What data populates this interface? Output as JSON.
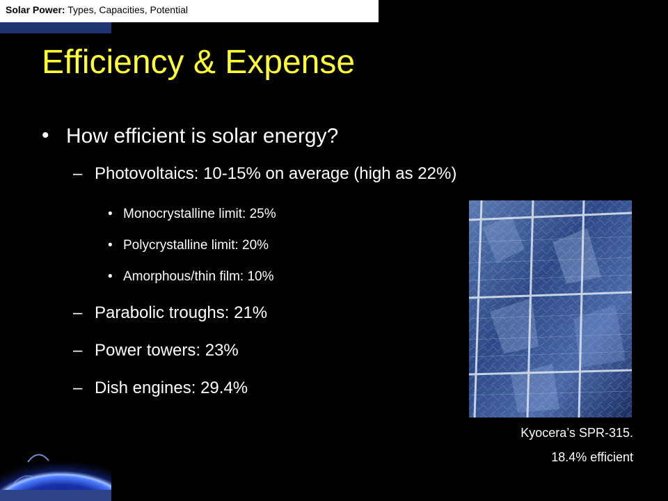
{
  "header": {
    "title_bold": "Solar Power:",
    "title_rest": " Types, Capacities, Potential"
  },
  "slide": {
    "title": "Efficiency & Expense",
    "bullets": {
      "q": "How efficient is solar energy?",
      "pv": "Photovoltaics: 10-15% on average (high as 22%)",
      "mono": "Monocrystalline limit: 25%",
      "poly": "Polycrystalline limit: 20%",
      "amorph": "Amorphous/thin film: 10%",
      "troughs": "Parabolic troughs: 21%",
      "towers": "Power towers: 23%",
      "dish": "Dish engines: 29.4%"
    },
    "caption": {
      "line1": "Kyocera’s SPR-315.",
      "line2": "18.4% efficient"
    },
    "markers": {
      "bullet": "•",
      "dash": "–"
    }
  },
  "colors": {
    "title": "#ffff33",
    "header_bg": "#ffffff",
    "accent": "#2a3d7a",
    "body_text": "#ffffff",
    "background": "#000000"
  }
}
